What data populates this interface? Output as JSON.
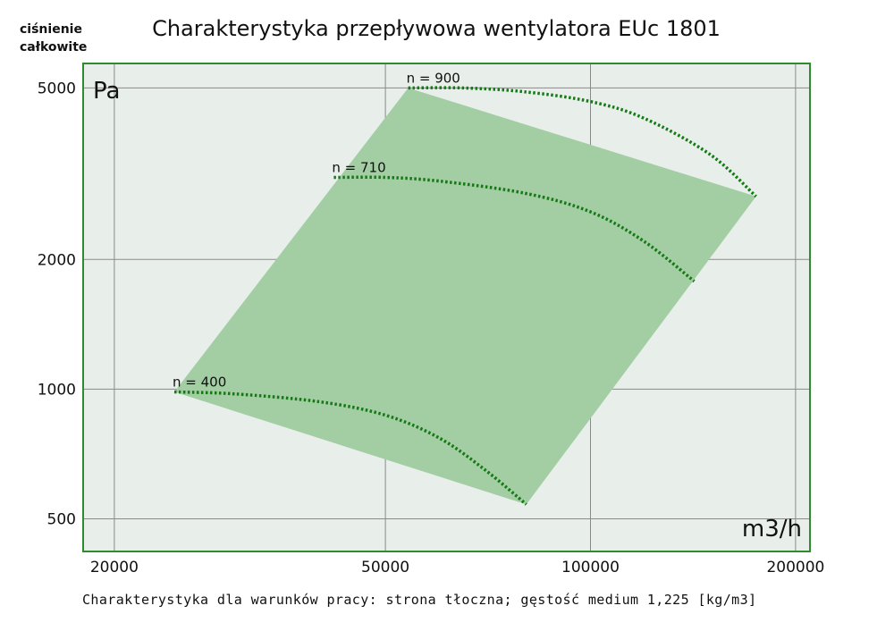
{
  "chart_data": {
    "type": "line",
    "title": "Charakterystyka przepływowa wentylatora EUc 1801",
    "ylabel": "ciśnienie całkowite",
    "ylabel_line1": "ciśnienie",
    "ylabel_line2": "całkowite",
    "yunit": "Pa",
    "xunit": "m3/h",
    "xscale": "log",
    "yscale": "log",
    "xlim": [
      18000,
      210000
    ],
    "ylim": [
      420,
      5700
    ],
    "xticks": [
      20000,
      50000,
      100000,
      200000
    ],
    "xtick_labels": [
      "20000",
      "50000",
      "100000",
      "200000"
    ],
    "yticks": [
      500,
      1000,
      2000,
      5000
    ],
    "ytick_labels": [
      "500",
      "1000",
      "2000",
      "5000"
    ],
    "grid": true,
    "series": [
      {
        "name": "n = 400",
        "x": [
          24500,
          30000,
          40000,
          50000,
          60000,
          70000,
          80500
        ],
        "y": [
          985,
          975,
          935,
          870,
          770,
          650,
          540
        ]
      },
      {
        "name": "n = 710",
        "x": [
          42000,
          50000,
          60000,
          80000,
          100000,
          120000,
          142000
        ],
        "y": [
          3100,
          3100,
          3040,
          2850,
          2580,
          2200,
          1780
        ]
      },
      {
        "name": "n = 900",
        "x": [
          54000,
          65000,
          80000,
          100000,
          120000,
          150000,
          175000
        ],
        "y": [
          5000,
          5000,
          4900,
          4650,
          4250,
          3500,
          2800
        ]
      }
    ],
    "operating_area": {
      "x": [
        24500,
        54000,
        175000,
        80500
      ],
      "y": [
        985,
        5000,
        2800,
        540
      ]
    },
    "colors": {
      "plot_background": "#e8efea",
      "plot_border": "#2e8b2e",
      "area_fill": "#a3cda3",
      "curve": "#157a15"
    },
    "footer": "Charakterystyka dla warunków pracy: strona tłoczna; gęstość medium 1,225 [kg/m3]"
  }
}
